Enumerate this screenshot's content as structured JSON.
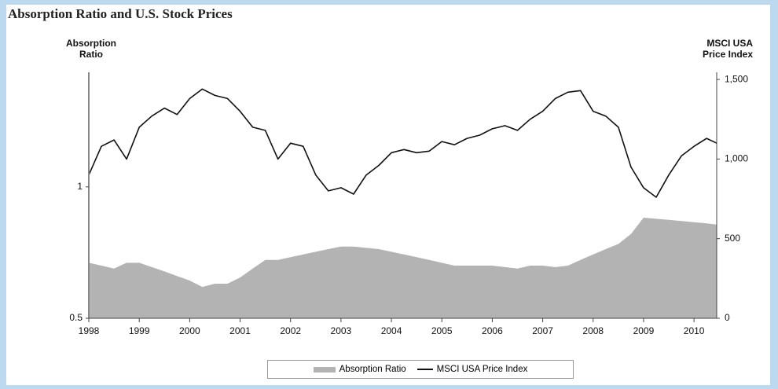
{
  "chart_data": {
    "type": "area-line",
    "title": "Absorption Ratio and U.S. Stock Prices",
    "y_label": "Absorption Ratio",
    "y2_label": "MSCI USA Price Index",
    "x": [
      1998,
      1998.25,
      1998.5,
      1998.75,
      1999,
      1999.25,
      1999.5,
      1999.75,
      2000,
      2000.25,
      2000.5,
      2000.75,
      2001,
      2001.25,
      2001.5,
      2001.75,
      2002,
      2002.25,
      2002.5,
      2002.75,
      2003,
      2003.25,
      2003.5,
      2003.75,
      2004,
      2004.25,
      2004.5,
      2004.75,
      2005,
      2005.25,
      2005.5,
      2005.75,
      2006,
      2006.25,
      2006.5,
      2006.75,
      2007,
      2007.25,
      2007.5,
      2007.75,
      2008,
      2008.25,
      2008.5,
      2008.75,
      2009,
      2009.25,
      2009.5,
      2009.75,
      2010,
      2010.25,
      2010.45
    ],
    "xlim": [
      1998,
      2010.45
    ],
    "xticks": [
      1998,
      1999,
      2000,
      2001,
      2002,
      2003,
      2004,
      2005,
      2006,
      2007,
      2008,
      2009,
      2010
    ],
    "ylim": [
      0.5,
      1.83
    ],
    "yticks": [
      0.5,
      1
    ],
    "yscale": "log",
    "y2lim": [
      0,
      1545
    ],
    "y2ticks": [
      0,
      500,
      {
        "value": 1000,
        "label": "1,000"
      },
      {
        "value": 1500,
        "label": "1,500"
      }
    ],
    "series": [
      {
        "name": "Absorption Ratio",
        "kind": "area",
        "color": "#b3b3b3",
        "values": [
          0.67,
          0.66,
          0.65,
          0.67,
          0.67,
          0.655,
          0.64,
          0.625,
          0.61,
          0.59,
          0.6,
          0.6,
          0.62,
          0.65,
          0.68,
          0.68,
          0.69,
          0.7,
          0.71,
          0.72,
          0.73,
          0.73,
          0.725,
          0.72,
          0.71,
          0.7,
          0.69,
          0.68,
          0.67,
          0.66,
          0.66,
          0.66,
          0.66,
          0.655,
          0.65,
          0.66,
          0.66,
          0.655,
          0.66,
          0.68,
          0.7,
          0.72,
          0.74,
          0.78,
          0.85,
          0.845,
          0.84,
          0.835,
          0.83,
          0.825,
          0.82
        ]
      },
      {
        "name": "MSCI USA Price Index",
        "kind": "line",
        "axis": "y2",
        "color": "#111111",
        "values": [
          900,
          1080,
          1120,
          1000,
          1200,
          1270,
          1320,
          1280,
          1380,
          1440,
          1400,
          1380,
          1300,
          1200,
          1180,
          1000,
          1100,
          1080,
          900,
          800,
          820,
          780,
          900,
          960,
          1040,
          1060,
          1040,
          1050,
          1110,
          1090,
          1130,
          1150,
          1190,
          1210,
          1180,
          1250,
          1300,
          1380,
          1420,
          1430,
          1300,
          1270,
          1200,
          950,
          820,
          760,
          900,
          1020,
          1080,
          1130,
          1100
        ]
      }
    ]
  }
}
